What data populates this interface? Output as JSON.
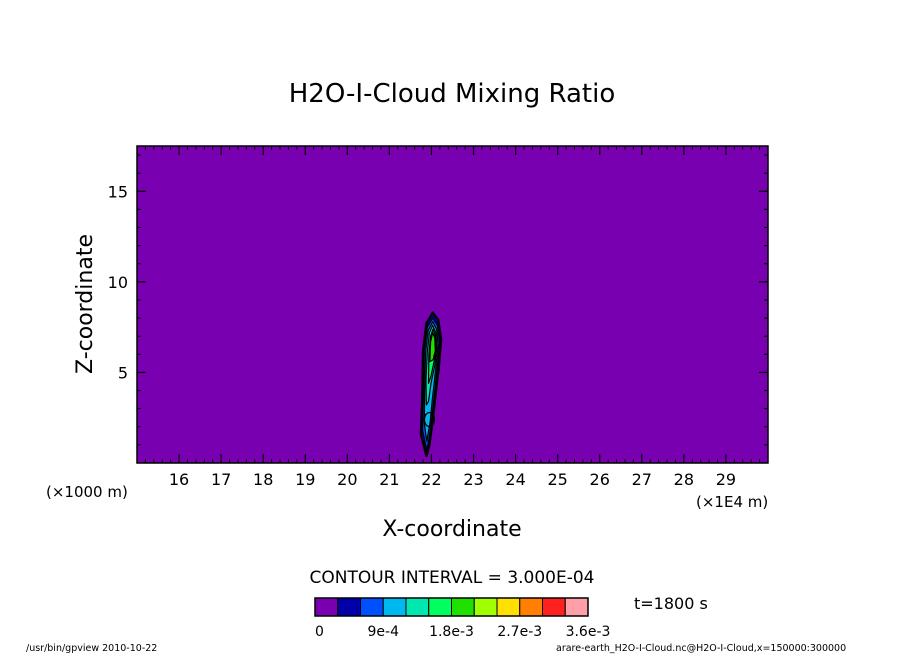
{
  "chart_data": {
    "type": "contour",
    "title": "H2O-I-Cloud Mixing Ratio",
    "xlabel": "X-coordinate",
    "ylabel": "Z-coordinate",
    "x_unit_left": "(×1000 m)",
    "x_unit_right": "(×1E4 m)",
    "x_ticks": [
      "16",
      "17",
      "18",
      "19",
      "20",
      "21",
      "22",
      "23",
      "24",
      "25",
      "26",
      "27",
      "28",
      "29"
    ],
    "y_ticks": [
      "5",
      "10",
      "15"
    ],
    "xlim": [
      150,
      300
    ],
    "ylim": [
      0,
      17.5
    ],
    "grid": false,
    "contour_interval_text": "CONTOUR INTERVAL = 3.000E-04",
    "time_text": "t=1800 s",
    "colorbar": {
      "colors": [
        "#7800b0",
        "#0000a8",
        "#0050ff",
        "#00b8f0",
        "#00e8b0",
        "#00ff60",
        "#20e000",
        "#a0ff00",
        "#ffe000",
        "#ff8000",
        "#ff2020",
        "#ffa0a8"
      ],
      "tick_labels": [
        "0",
        "9e-4",
        "1.8e-3",
        "2.7e-3",
        "3.6e-3"
      ],
      "tick_positions": [
        0,
        3,
        6,
        9,
        12
      ]
    },
    "cloud_region": {
      "x_range": [
        216,
        224
      ],
      "z_range": [
        0.5,
        8.3
      ],
      "max_level_index": 5
    },
    "footer_left": "/usr/bin/gpview  2010-10-22",
    "footer_right": "arare-earth_H2O-I-Cloud.nc@H2O-I-Cloud,x=150000:300000",
    "background_color": "#7800b0"
  }
}
